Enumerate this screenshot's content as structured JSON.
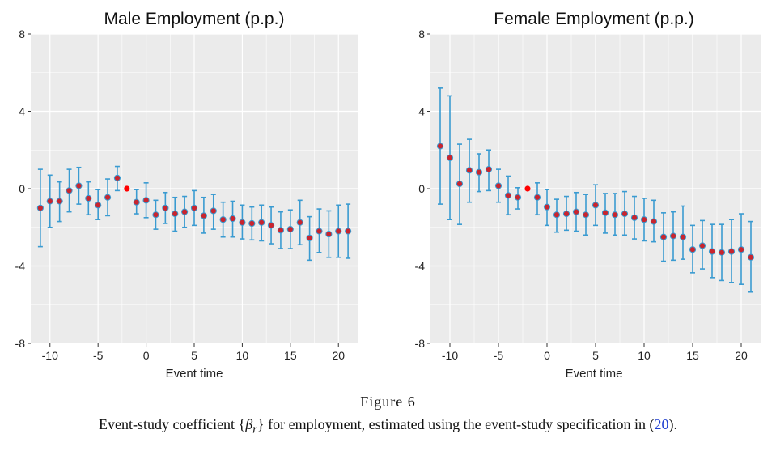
{
  "figure": {
    "label": "Figure 6",
    "caption_pre": "Event-study coefficient {",
    "caption_beta": "β",
    "caption_sub": "r",
    "caption_mid": "} for employment, estimated using the event-study specification in (",
    "caption_ref": "20",
    "caption_post": ").",
    "colors": {
      "errorbar": "#3a9bd1",
      "point_fill": "#c8252f",
      "reference_point": "#ff0000",
      "panel_bg": "#ebebeb",
      "grid": "#ffffff"
    }
  },
  "chart_data": [
    {
      "type": "scatter",
      "title": "Male Employment (p.p.)",
      "xlabel": "Event time",
      "ylabel": "",
      "xlim": [
        -12,
        22
      ],
      "ylim": [
        -8,
        8
      ],
      "xticks": [
        -10,
        -5,
        0,
        5,
        10,
        15,
        20
      ],
      "yticks": [
        8,
        4,
        0,
        -4,
        -8
      ],
      "reference_point": {
        "x": -2,
        "y": 0
      },
      "x": [
        -11,
        -10,
        -9,
        -8,
        -7,
        -6,
        -5,
        -4,
        -3,
        -1,
        0,
        1,
        2,
        3,
        4,
        5,
        6,
        7,
        8,
        9,
        10,
        11,
        12,
        13,
        14,
        15,
        16,
        17,
        18,
        19,
        20,
        21
      ],
      "y": [
        -1.0,
        -0.65,
        -0.65,
        -0.1,
        0.15,
        -0.5,
        -0.85,
        -0.45,
        0.55,
        -0.7,
        -0.6,
        -1.35,
        -1.0,
        -1.3,
        -1.2,
        -1.0,
        -1.4,
        -1.15,
        -1.6,
        -1.55,
        -1.75,
        -1.8,
        -1.75,
        -1.9,
        -2.15,
        -2.1,
        -1.75,
        -2.55,
        -2.2,
        -2.35,
        -2.2,
        -2.2
      ],
      "lower": [
        -3.0,
        -2.0,
        -1.7,
        -1.2,
        -0.8,
        -1.35,
        -1.6,
        -1.4,
        -0.1,
        -1.3,
        -1.5,
        -2.1,
        -1.8,
        -2.2,
        -2.0,
        -1.9,
        -2.3,
        -2.1,
        -2.5,
        -2.5,
        -2.6,
        -2.65,
        -2.7,
        -2.85,
        -3.1,
        -3.1,
        -2.9,
        -3.7,
        -3.3,
        -3.55,
        -3.55,
        -3.6
      ],
      "upper": [
        1.0,
        0.7,
        0.35,
        1.0,
        1.1,
        0.35,
        -0.05,
        0.5,
        1.15,
        -0.05,
        0.3,
        -0.6,
        -0.2,
        -0.45,
        -0.4,
        -0.1,
        -0.45,
        -0.3,
        -0.7,
        -0.65,
        -0.85,
        -0.95,
        -0.85,
        -0.95,
        -1.2,
        -1.1,
        -0.6,
        -1.45,
        -1.05,
        -1.15,
        -0.85,
        -0.8
      ]
    },
    {
      "type": "scatter",
      "title": "Female Employment (p.p.)",
      "xlabel": "Event time",
      "ylabel": "",
      "xlim": [
        -12,
        22
      ],
      "ylim": [
        -8,
        8
      ],
      "xticks": [
        -10,
        -5,
        0,
        5,
        10,
        15,
        20
      ],
      "yticks": [
        8,
        4,
        0,
        -4,
        -8
      ],
      "reference_point": {
        "x": -2,
        "y": 0
      },
      "x": [
        -11,
        -10,
        -9,
        -8,
        -7,
        -6,
        -5,
        -4,
        -3,
        -1,
        0,
        1,
        2,
        3,
        4,
        5,
        6,
        7,
        8,
        9,
        10,
        11,
        12,
        13,
        14,
        15,
        16,
        17,
        18,
        19,
        20,
        21
      ],
      "y": [
        2.2,
        1.6,
        0.25,
        0.95,
        0.85,
        1.0,
        0.15,
        -0.35,
        -0.45,
        -0.45,
        -0.95,
        -1.35,
        -1.3,
        -1.2,
        -1.35,
        -0.85,
        -1.25,
        -1.35,
        -1.3,
        -1.5,
        -1.6,
        -1.7,
        -2.5,
        -2.45,
        -2.5,
        -3.15,
        -2.95,
        -3.25,
        -3.3,
        -3.25,
        -3.15,
        -3.55
      ],
      "lower": [
        -0.8,
        -1.6,
        -1.85,
        -0.7,
        -0.15,
        -0.1,
        -0.7,
        -1.35,
        -1.05,
        -1.35,
        -1.9,
        -2.25,
        -2.15,
        -2.2,
        -2.4,
        -1.9,
        -2.3,
        -2.4,
        -2.4,
        -2.6,
        -2.7,
        -2.75,
        -3.75,
        -3.7,
        -3.65,
        -4.35,
        -4.15,
        -4.6,
        -4.75,
        -4.85,
        -4.95,
        -5.35
      ],
      "upper": [
        5.2,
        4.8,
        2.3,
        2.55,
        1.8,
        2.0,
        1.0,
        0.65,
        0.05,
        0.3,
        -0.05,
        -0.55,
        -0.4,
        -0.2,
        -0.3,
        0.2,
        -0.25,
        -0.25,
        -0.15,
        -0.4,
        -0.5,
        -0.6,
        -1.25,
        -1.2,
        -0.9,
        -1.9,
        -1.65,
        -1.85,
        -1.85,
        -1.6,
        -1.3,
        -1.7
      ]
    }
  ]
}
